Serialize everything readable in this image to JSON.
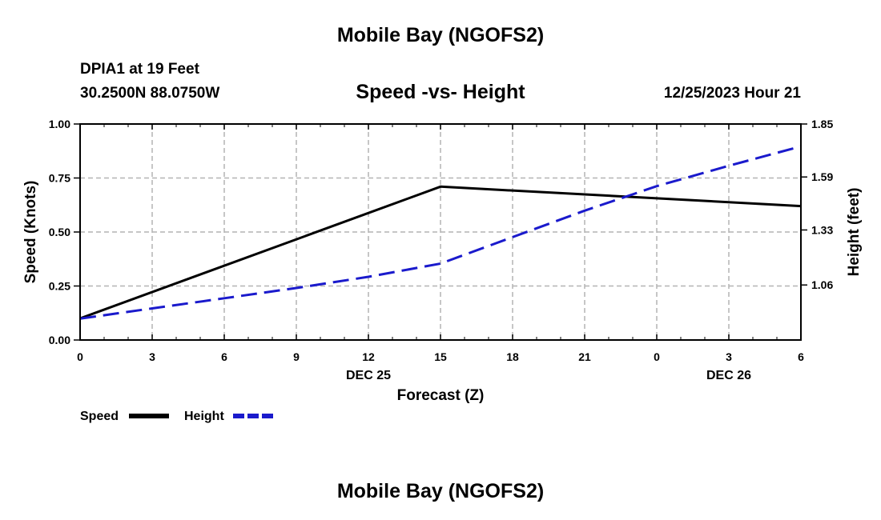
{
  "header": {
    "title": "Mobile Bay (NGOFS2)",
    "station": "DPIA1 at 19 Feet",
    "coordinates": "30.2500N  88.0750W",
    "chart_title": "Speed -vs- Height",
    "datetime": "12/25/2023 Hour 21"
  },
  "footer": {
    "title": "Mobile Bay (NGOFS2)"
  },
  "colors": {
    "speed": "#000000",
    "height": "#1a1acc",
    "grid": "#b4b4b4"
  },
  "chart_data": {
    "type": "line",
    "title": "Speed -vs- Height",
    "xlabel": "Forecast (Z)",
    "ylabel": "Speed (Knots)",
    "y2label": "Height (feet)",
    "x_ticks": [
      "0",
      "3",
      "6",
      "9",
      "12",
      "15",
      "18",
      "21",
      "0",
      "3",
      "6"
    ],
    "x_date_labels": [
      {
        "tick_index": 4,
        "label": "DEC 25"
      },
      {
        "tick_index": 9,
        "label": "DEC 26"
      }
    ],
    "xlim": [
      0,
      30
    ],
    "ylim": [
      0,
      1.0
    ],
    "y_ticks": [
      "0.00",
      "0.25",
      "0.50",
      "0.75",
      "1.00"
    ],
    "y2lim": [
      0.79,
      1.85
    ],
    "y2_ticks": [
      "1.06",
      "1.33",
      "1.59",
      "1.85"
    ],
    "grid": true,
    "series": [
      {
        "name": "Speed",
        "axis": "left",
        "style": "solid",
        "x": [
          0,
          15,
          30
        ],
        "y": [
          0.1,
          0.71,
          0.62
        ]
      },
      {
        "name": "Height",
        "axis": "right",
        "style": "dashed",
        "x": [
          0,
          3,
          6,
          9,
          12,
          15,
          18,
          21,
          24,
          27,
          30
        ],
        "y": [
          0.895,
          0.945,
          0.995,
          1.045,
          1.1,
          1.165,
          1.295,
          1.425,
          1.545,
          1.645,
          1.74
        ]
      }
    ],
    "legend": {
      "position": "bottom-left",
      "items": [
        "Speed",
        "Height"
      ]
    }
  }
}
